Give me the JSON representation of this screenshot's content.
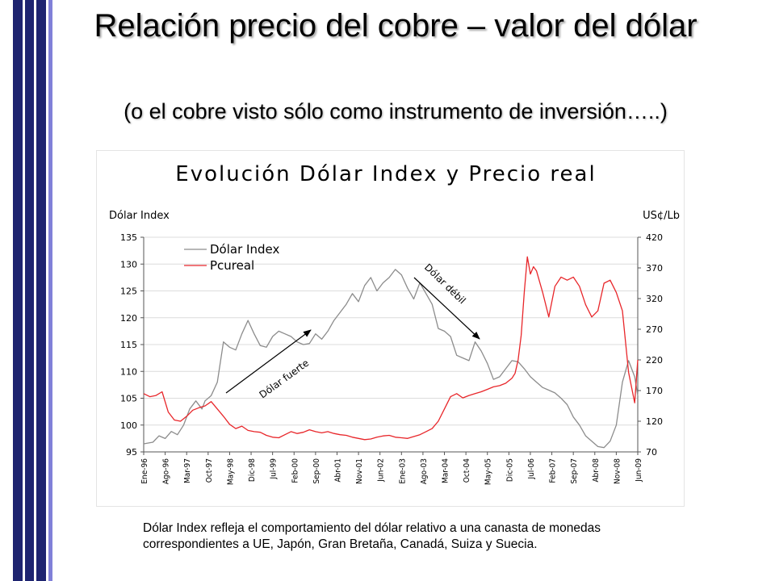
{
  "slide": {
    "title": "Relación precio del cobre – valor del dólar",
    "subtitle": "(o el cobre visto sólo como instrumento de inversión…..)",
    "footnote": "Dólar Index refleja el comportamiento del dólar relativo a una canasta de monedas correspondientes a UE, Japón, Gran Bretaña, Canadá, Suiza y Suecia."
  },
  "colors": {
    "sidebar_dark": "#1e2470",
    "sidebar_light": "#8080d8",
    "dolar_index": "#8c8c8c",
    "pcureal": "#e8262a"
  },
  "chart_data": {
    "type": "line",
    "title": "Evolución Dólar Index  y Precio real",
    "ylabel_left": "Dólar Index",
    "ylabel_right": "US¢/Lb",
    "ylim_left": [
      95,
      135
    ],
    "ylim_right": [
      70,
      420
    ],
    "yticks_left": [
      "135",
      "130",
      "125",
      "120",
      "115",
      "110",
      "105",
      "100",
      "95"
    ],
    "yticks_right": [
      "420",
      "370",
      "320",
      "270",
      "220",
      "170",
      "120",
      "70"
    ],
    "x_tick_labels": [
      "Ene-96",
      "Ago-96",
      "Mar-97",
      "Oct-97",
      "May-98",
      "Dic-98",
      "Jul-99",
      "Feb-00",
      "Sep-00",
      "Abr-01",
      "Nov-01",
      "Jun-02",
      "Ene-03",
      "Ago-03",
      "Mar-04",
      "Oct-04",
      "May-05",
      "Dic-05",
      "Jul-06",
      "Feb-07",
      "Sep-07",
      "Abr-08",
      "Nov-08",
      "Jun-09"
    ],
    "legend_position": "top-left",
    "series": [
      {
        "name": "Dólar Index",
        "axis": "left",
        "color": "#8c8c8c",
        "x": [
          0,
          3,
          5,
          7,
          9,
          11,
          13,
          15,
          17,
          19,
          20,
          22,
          24,
          26,
          28,
          30,
          32,
          34,
          36,
          38,
          40,
          42,
          44,
          46,
          48,
          50,
          52,
          54,
          56,
          58,
          60,
          62,
          64,
          66,
          68,
          70,
          72,
          74,
          76,
          78,
          80,
          82,
          84,
          86,
          88,
          90,
          92,
          94,
          96,
          98,
          100,
          102,
          104,
          106,
          108,
          110,
          112,
          114,
          116,
          118,
          120,
          122,
          124,
          126,
          128,
          130,
          132,
          134,
          136,
          138,
          140,
          142,
          144,
          146,
          148,
          150,
          152,
          154,
          156,
          158,
          160,
          161
        ],
        "values": [
          96.5,
          96.8,
          98.0,
          97.5,
          98.8,
          98.2,
          100.0,
          103.0,
          104.5,
          103.0,
          104.5,
          105.5,
          108.0,
          115.5,
          114.5,
          114.0,
          117.0,
          119.5,
          117.0,
          114.8,
          114.5,
          116.5,
          117.5,
          117.0,
          116.5,
          115.5,
          115.0,
          115.2,
          117.0,
          116.0,
          117.5,
          119.5,
          121.0,
          122.5,
          124.5,
          123.0,
          126.0,
          127.5,
          125.0,
          126.5,
          127.5,
          129.0,
          128.0,
          125.5,
          123.5,
          126.5,
          124.5,
          122.5,
          118.0,
          117.5,
          116.5,
          113.0,
          112.5,
          112.0,
          115.5,
          113.8,
          111.5,
          108.5,
          109.0,
          110.5,
          112.0,
          111.8,
          110.5,
          109.0,
          108.0,
          107.0,
          106.5,
          106.0,
          105.0,
          103.8,
          101.5,
          100.0,
          98.0,
          97.0,
          96.0,
          95.8,
          97.0,
          100.0,
          108.0,
          112.0,
          109.0,
          105.5
        ]
      },
      {
        "name": "Pcureal",
        "axis": "right",
        "color": "#e8262a",
        "x": [
          0,
          2,
          4,
          6,
          8,
          10,
          12,
          14,
          16,
          18,
          20,
          22,
          24,
          26,
          28,
          30,
          32,
          34,
          36,
          38,
          40,
          42,
          44,
          46,
          48,
          50,
          52,
          54,
          56,
          58,
          60,
          62,
          64,
          66,
          68,
          70,
          72,
          74,
          76,
          78,
          80,
          82,
          84,
          86,
          88,
          90,
          92,
          94,
          96,
          98,
          100,
          102,
          104,
          106,
          108,
          110,
          112,
          114,
          116,
          118,
          120,
          121,
          122,
          123,
          124,
          125,
          126,
          127,
          128,
          130,
          132,
          134,
          136,
          138,
          140,
          142,
          144,
          146,
          148,
          150,
          152,
          154,
          156,
          158,
          160,
          161
        ],
        "values": [
          165,
          160,
          162,
          168,
          135,
          122,
          120,
          128,
          138,
          142,
          145,
          152,
          140,
          128,
          115,
          108,
          112,
          105,
          103,
          102,
          97,
          94,
          93,
          98,
          103,
          100,
          102,
          106,
          103,
          101,
          103,
          100,
          98,
          97,
          94,
          92,
          90,
          91,
          94,
          96,
          97,
          94,
          93,
          92,
          95,
          98,
          103,
          108,
          120,
          140,
          160,
          165,
          158,
          162,
          165,
          168,
          172,
          176,
          178,
          182,
          190,
          198,
          220,
          260,
          330,
          388,
          360,
          372,
          365,
          330,
          290,
          340,
          355,
          350,
          355,
          340,
          310,
          290,
          300,
          345,
          350,
          330,
          300,
          200,
          150,
          220
        ]
      }
    ],
    "annotations": [
      {
        "text": "Dólar fuerte",
        "arrow": "up-right"
      },
      {
        "text": "Dólar débil",
        "arrow": "down-right"
      }
    ]
  }
}
